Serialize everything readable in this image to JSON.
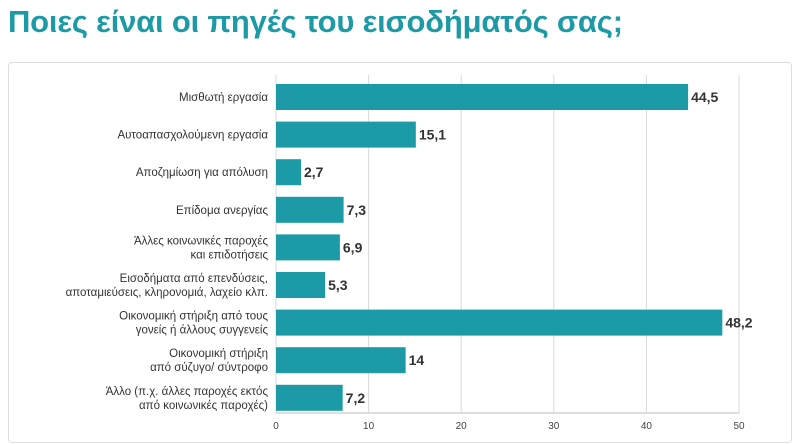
{
  "title": "Ποιες είναι οι πηγές του εισοδήματός σας;",
  "colors": {
    "bar": "#1c9aa5",
    "title": "#1c9aa5",
    "grid": "#d9d9d9"
  },
  "chart_data": {
    "type": "bar",
    "orientation": "horizontal",
    "categories": [
      [
        "Μισθωτή εργασία"
      ],
      [
        "Αυτοαπασχολούμενη εργασία"
      ],
      [
        "Αποζημίωση για απόλυση"
      ],
      [
        "Επίδομα ανεργίας"
      ],
      [
        "Άλλες κοινωνικές παροχές",
        "και επιδοτήσεις"
      ],
      [
        "Εισοδήματα από επενδύσεις,",
        "αποταμιεύσεις, κληρονομιά, λαχείο κλπ."
      ],
      [
        "Οικονομική στήριξη από τους",
        "γονείς ή άλλους συγγενείς"
      ],
      [
        "Οικονομική στήριξη",
        "από σύζυγο/ σύντροφο"
      ],
      [
        "Άλλο (π.χ. άλλες παροχές εκτός",
        "από κοινωνικές παροχές)"
      ]
    ],
    "values": [
      44.5,
      15.1,
      2.7,
      7.3,
      6.9,
      5.3,
      48.2,
      14,
      7.2
    ],
    "value_labels": [
      "44,5",
      "15,1",
      "2,7",
      "7,3",
      "6,9",
      "5,3",
      "48,2",
      "14",
      "7,2"
    ],
    "xlim": [
      0,
      50
    ],
    "xticks": [
      0,
      10,
      20,
      30,
      40,
      50
    ],
    "grid": true,
    "xlabel": "",
    "ylabel": ""
  }
}
